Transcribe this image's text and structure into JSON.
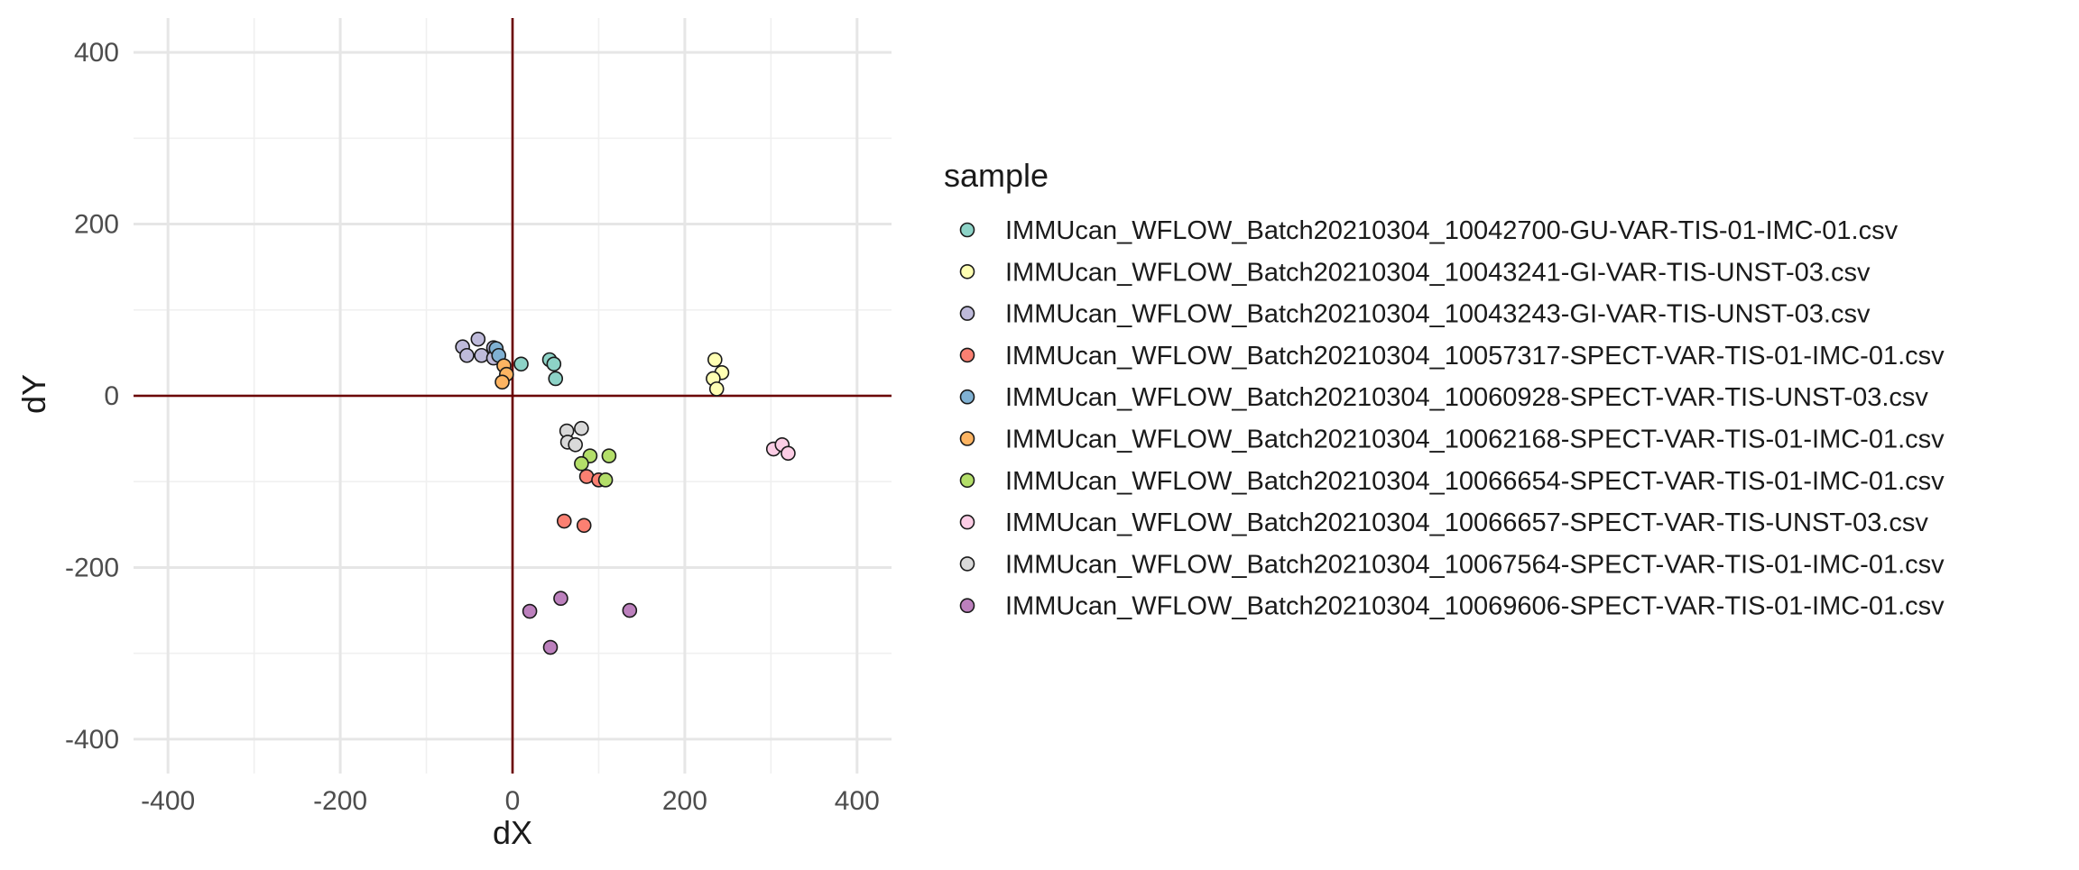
{
  "chart_data": {
    "type": "scatter",
    "xlabel": "dX",
    "ylabel": "dY",
    "xlim": [
      -440,
      440
    ],
    "ylim": [
      -440,
      440
    ],
    "x_ticks": [
      -400,
      -200,
      0,
      200,
      400
    ],
    "y_ticks": [
      -400,
      -200,
      0,
      200,
      400
    ],
    "x_tick_labels": [
      "-400",
      "-200",
      "0",
      "200",
      "400"
    ],
    "y_tick_labels": [
      "-400",
      "-200",
      "0",
      "200",
      "400"
    ],
    "grid": true,
    "reference_lines": {
      "x": 0,
      "y": 0,
      "color": "#6b0000"
    },
    "legend_title": "sample",
    "legend_position": "right",
    "series": [
      {
        "name": "IMMUcan_WFLOW_Batch20210304_10042700-GU-VAR-TIS-01-IMC-01.csv",
        "color": "#8DD3C7",
        "points": [
          [
            10,
            37
          ],
          [
            43,
            42
          ],
          [
            48,
            37
          ],
          [
            50,
            20
          ]
        ]
      },
      {
        "name": "IMMUcan_WFLOW_Batch20210304_10043241-GI-VAR-TIS-UNST-03.csv",
        "color": "#FFFFB3",
        "points": [
          [
            235,
            42
          ],
          [
            243,
            27
          ],
          [
            233,
            20
          ],
          [
            237,
            8
          ]
        ]
      },
      {
        "name": "IMMUcan_WFLOW_Batch20210304_10043243-GI-VAR-TIS-UNST-03.csv",
        "color": "#BEBADA",
        "points": [
          [
            -40,
            66
          ],
          [
            -58,
            57
          ],
          [
            -53,
            47
          ],
          [
            -36,
            47
          ],
          [
            -22,
            56
          ],
          [
            -18,
            50
          ],
          [
            -22,
            44
          ]
        ]
      },
      {
        "name": "IMMUcan_WFLOW_Batch20210304_10057317-SPECT-VAR-TIS-01-IMC-01.csv",
        "color": "#FB8072",
        "points": [
          [
            86,
            -94
          ],
          [
            100,
            -98
          ],
          [
            60,
            -146
          ],
          [
            83,
            -151
          ]
        ]
      },
      {
        "name": "IMMUcan_WFLOW_Batch20210304_10060928-SPECT-VAR-TIS-UNST-03.csv",
        "color": "#80B1D3",
        "points": [
          [
            -19,
            55
          ],
          [
            -16,
            47
          ]
        ]
      },
      {
        "name": "IMMUcan_WFLOW_Batch20210304_10062168-SPECT-VAR-TIS-01-IMC-01.csv",
        "color": "#FDB462",
        "points": [
          [
            -10,
            35
          ],
          [
            -7,
            25
          ],
          [
            -12,
            16
          ]
        ]
      },
      {
        "name": "IMMUcan_WFLOW_Batch20210304_10066654-SPECT-VAR-TIS-01-IMC-01.csv",
        "color": "#B3DE69",
        "points": [
          [
            112,
            -70
          ],
          [
            90,
            -70
          ],
          [
            80,
            -79
          ],
          [
            108,
            -98
          ]
        ]
      },
      {
        "name": "IMMUcan_WFLOW_Batch20210304_10066657-SPECT-VAR-TIS-UNST-03.csv",
        "color": "#FCCDE5",
        "points": [
          [
            303,
            -62
          ],
          [
            313,
            -57
          ],
          [
            320,
            -67
          ]
        ]
      },
      {
        "name": "IMMUcan_WFLOW_Batch20210304_10067564-SPECT-VAR-TIS-01-IMC-01.csv",
        "color": "#D9D9D9",
        "points": [
          [
            63,
            -41
          ],
          [
            80,
            -38
          ],
          [
            64,
            -54
          ],
          [
            73,
            -57
          ]
        ]
      },
      {
        "name": "IMMUcan_WFLOW_Batch20210304_10069606-SPECT-VAR-TIS-01-IMC-01.csv",
        "color": "#BC80BD",
        "points": [
          [
            56,
            -236
          ],
          [
            20,
            -251
          ],
          [
            136,
            -250
          ],
          [
            44,
            -293
          ]
        ]
      }
    ]
  }
}
